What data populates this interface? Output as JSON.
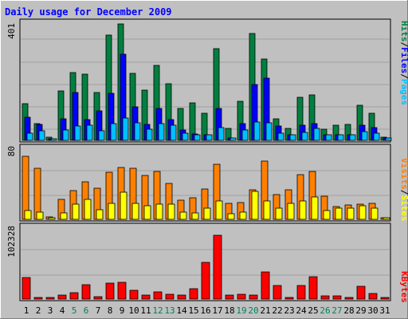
{
  "chart_data": [
    {
      "type": "bar",
      "title": "Daily usage for December 2009",
      "y_label_top": "401",
      "y_axis_title": [
        "Pages",
        "Files",
        "Hits"
      ],
      "categories": [
        "1",
        "2",
        "3",
        "4",
        "5",
        "6",
        "7",
        "8",
        "9",
        "10",
        "11",
        "12",
        "13",
        "14",
        "15",
        "16",
        "17",
        "18",
        "19",
        "20",
        "21",
        "22",
        "23",
        "24",
        "25",
        "26",
        "27",
        "28",
        "29",
        "30",
        "31"
      ],
      "weekend_days": [
        "5",
        "6",
        "12",
        "13",
        "19",
        "20",
        "26",
        "27"
      ],
      "ylim": [
        0,
        401
      ],
      "series": [
        {
          "name": "Hits",
          "color": "#008040",
          "values": [
            125,
            58,
            10,
            170,
            233,
            227,
            163,
            361,
            398,
            230,
            172,
            256,
            193,
            108,
            127,
            94,
            315,
            40,
            133,
            365,
            279,
            75,
            41,
            148,
            156,
            37,
            53,
            55,
            120,
            93,
            12
          ]
        },
        {
          "name": "Files",
          "color": "#0000ff",
          "values": [
            78,
            55,
            5,
            75,
            163,
            72,
            102,
            162,
            295,
            115,
            55,
            110,
            71,
            35,
            22,
            18,
            108,
            8,
            56,
            190,
            212,
            50,
            20,
            53,
            57,
            20,
            20,
            20,
            53,
            43,
            7
          ]
        },
        {
          "name": "Pages",
          "color": "#00c0ff",
          "values": [
            25,
            32,
            5,
            35,
            50,
            53,
            32,
            58,
            77,
            60,
            38,
            58,
            53,
            25,
            20,
            18,
            45,
            8,
            35,
            62,
            60,
            25,
            20,
            28,
            40,
            18,
            20,
            20,
            30,
            25,
            7
          ]
        }
      ]
    },
    {
      "type": "bar",
      "y_label_top": "80",
      "y_axis_title": [
        "Sites",
        "Visits"
      ],
      "categories": [
        "1",
        "2",
        "3",
        "4",
        "5",
        "6",
        "7",
        "8",
        "9",
        "10",
        "11",
        "12",
        "13",
        "14",
        "15",
        "16",
        "17",
        "18",
        "19",
        "20",
        "21",
        "22",
        "23",
        "24",
        "25",
        "26",
        "27",
        "28",
        "29",
        "30",
        "31"
      ],
      "ylim": [
        0,
        80
      ],
      "series": [
        {
          "name": "Visits",
          "color": "#ff8000",
          "values": [
            70,
            57,
            3,
            22,
            32,
            42,
            35,
            52,
            58,
            57,
            49,
            53,
            40,
            21,
            24,
            34,
            61,
            18,
            19,
            33,
            65,
            28,
            33,
            50,
            53,
            26,
            14,
            16,
            17,
            18,
            2
          ]
        },
        {
          "name": "Sites",
          "color": "#ffff00",
          "values": [
            10,
            8,
            2,
            7,
            17,
            22,
            11,
            18,
            30,
            18,
            15,
            17,
            17,
            8,
            7,
            12,
            20,
            6,
            8,
            31,
            20,
            12,
            18,
            20,
            25,
            10,
            12,
            12,
            15,
            12,
            2
          ]
        }
      ]
    },
    {
      "type": "bar",
      "y_label_top": "102328",
      "y_axis_title": [
        "KBytes"
      ],
      "categories": [
        "1",
        "2",
        "3",
        "4",
        "5",
        "6",
        "7",
        "8",
        "9",
        "10",
        "11",
        "12",
        "13",
        "14",
        "15",
        "16",
        "17",
        "18",
        "19",
        "20",
        "21",
        "22",
        "23",
        "24",
        "25",
        "26",
        "27",
        "28",
        "29",
        "30",
        "31"
      ],
      "ylim": [
        0,
        102328
      ],
      "series": [
        {
          "name": "KBytes",
          "color": "#ff0000",
          "values": [
            30000,
            2000,
            2000,
            6000,
            9000,
            20000,
            3000,
            23000,
            24000,
            12000,
            6000,
            10000,
            7000,
            6000,
            15000,
            52000,
            90000,
            6000,
            7000,
            6000,
            38000,
            19000,
            2000,
            19000,
            32000,
            5000,
            5000,
            2000,
            18000,
            8000,
            2000
          ]
        }
      ]
    }
  ]
}
